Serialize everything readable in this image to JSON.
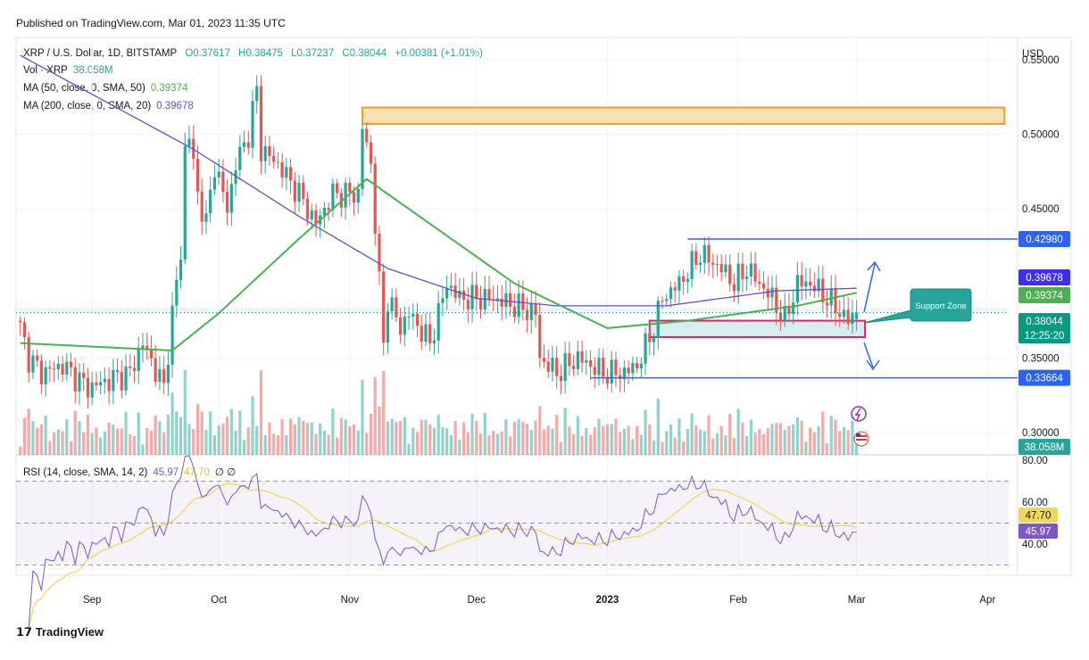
{
  "header": {
    "published": "Published on TradingView.com, Mar 01, 2023 11:35 UTC"
  },
  "legend": {
    "symbol": "XRP / U.S. Dollar, 1D, BITSTAMP",
    "open": "O0.37617",
    "high": "H0.38475",
    "low": "L0.37237",
    "close": "C0.38044",
    "change": "+0.00381 (+1.01%)",
    "vol_label": "Vol · XRP",
    "vol_value": "38.058M",
    "ma50_label": "MA (50, close, 0, SMA, 50)",
    "ma50_value": "0.39374",
    "ma200_label": "MA (200, close, 0, SMA, 20)",
    "ma200_value": "0.39678",
    "rsi_label": "RSI (14, close, SMA, 14, 2)",
    "rsi_value": "45.97",
    "rsi_ma_value": "47.70",
    "rsi_extra": "∅ ∅"
  },
  "annotations": {
    "support_zone": "Support Zone"
  },
  "footer": {
    "brand": "TradingView"
  },
  "colors": {
    "up": "#26a69a",
    "down": "#ef5350",
    "ma50": "#4caf50",
    "ma200": "#5b4fcf",
    "rsi": "#7e57c2",
    "rsi_ma": "#f0d75a",
    "level": "#2962ff",
    "zone_orange": "#f0a020",
    "zone_pink": "#e91e63"
  },
  "chart_data": {
    "type": "candlestick",
    "currency": "USD",
    "y_ticks": [
      "0.55000",
      "0.50000",
      "0.45000",
      "0.35000",
      "0.30000"
    ],
    "ylim": [
      0.285,
      0.565
    ],
    "x_ticks": [
      {
        "date": "2022-09-01",
        "label": "Sep"
      },
      {
        "date": "2022-10-01",
        "label": "Oct"
      },
      {
        "date": "2022-11-01",
        "label": "Nov"
      },
      {
        "date": "2022-12-01",
        "label": "Dec"
      },
      {
        "date": "2023-01-01",
        "label": "2023"
      },
      {
        "date": "2023-02-01",
        "label": "Feb"
      },
      {
        "date": "2023-03-01",
        "label": "Mar"
      },
      {
        "date": "2023-04-01",
        "label": "Apr"
      }
    ],
    "xlim": [
      "2022-08-14",
      "2023-04-06"
    ],
    "close_points": [
      [
        "2022-08-15",
        0.37
      ],
      [
        "2022-08-17",
        0.35
      ],
      [
        "2022-08-20",
        0.34
      ],
      [
        "2022-08-25",
        0.345
      ],
      [
        "2022-08-31",
        0.33
      ],
      [
        "2022-09-05",
        0.335
      ],
      [
        "2022-09-10",
        0.34
      ],
      [
        "2022-09-13",
        0.36
      ],
      [
        "2022-09-18",
        0.33
      ],
      [
        "2022-09-20",
        0.38
      ],
      [
        "2022-09-22",
        0.42
      ],
      [
        "2022-09-23",
        0.49
      ],
      [
        "2022-09-24",
        0.5
      ],
      [
        "2022-09-26",
        0.46
      ],
      [
        "2022-09-28",
        0.44
      ],
      [
        "2022-09-30",
        0.48
      ],
      [
        "2022-10-03",
        0.45
      ],
      [
        "2022-10-05",
        0.48
      ],
      [
        "2022-10-08",
        0.5
      ],
      [
        "2022-10-10",
        0.53
      ],
      [
        "2022-10-11",
        0.49
      ],
      [
        "2022-10-15",
        0.48
      ],
      [
        "2022-10-20",
        0.46
      ],
      [
        "2022-10-24",
        0.44
      ],
      [
        "2022-10-28",
        0.46
      ],
      [
        "2022-10-31",
        0.46
      ],
      [
        "2022-11-03",
        0.46
      ],
      [
        "2022-11-04",
        0.505
      ],
      [
        "2022-11-06",
        0.48
      ],
      [
        "2022-11-08",
        0.4
      ],
      [
        "2022-11-09",
        0.36
      ],
      [
        "2022-11-10",
        0.39
      ],
      [
        "2022-11-13",
        0.37
      ],
      [
        "2022-11-15",
        0.38
      ],
      [
        "2022-11-20",
        0.36
      ],
      [
        "2022-11-24",
        0.4
      ],
      [
        "2022-11-27",
        0.39
      ],
      [
        "2022-12-05",
        0.39
      ],
      [
        "2022-12-10",
        0.385
      ],
      [
        "2022-12-15",
        0.38
      ],
      [
        "2022-12-16",
        0.35
      ],
      [
        "2022-12-20",
        0.34
      ],
      [
        "2022-12-25",
        0.35
      ],
      [
        "2022-12-31",
        0.34
      ],
      [
        "2023-01-05",
        0.34
      ],
      [
        "2023-01-08",
        0.345
      ],
      [
        "2023-01-12",
        0.37
      ],
      [
        "2023-01-14",
        0.39
      ],
      [
        "2023-01-18",
        0.4
      ],
      [
        "2023-01-23",
        0.42
      ],
      [
        "2023-01-28",
        0.41
      ],
      [
        "2023-01-31",
        0.4
      ],
      [
        "2023-02-03",
        0.41
      ],
      [
        "2023-02-09",
        0.39
      ],
      [
        "2023-02-12",
        0.375
      ],
      [
        "2023-02-15",
        0.4
      ],
      [
        "2023-02-18",
        0.4
      ],
      [
        "2023-02-22",
        0.39
      ],
      [
        "2023-02-27",
        0.375
      ],
      [
        "2023-03-01",
        0.38044
      ]
    ],
    "ma50_points": [
      [
        "2022-08-15",
        0.36
      ],
      [
        "2022-09-20",
        0.355
      ],
      [
        "2022-10-01",
        0.38
      ],
      [
        "2022-10-20",
        0.43
      ],
      [
        "2022-11-05",
        0.47
      ],
      [
        "2022-11-20",
        0.44
      ],
      [
        "2022-12-10",
        0.4
      ],
      [
        "2023-01-01",
        0.37
      ],
      [
        "2023-01-20",
        0.375
      ],
      [
        "2023-02-15",
        0.385
      ],
      [
        "2023-03-01",
        0.39374
      ]
    ],
    "ma200_points": [
      [
        "2022-08-15",
        0.553
      ],
      [
        "2022-09-25",
        0.49
      ],
      [
        "2022-10-20",
        0.445
      ],
      [
        "2022-11-10",
        0.41
      ],
      [
        "2022-12-01",
        0.39
      ],
      [
        "2022-12-20",
        0.385
      ],
      [
        "2023-01-15",
        0.385
      ],
      [
        "2023-02-10",
        0.395
      ],
      [
        "2023-03-01",
        0.39678
      ]
    ],
    "levels": [
      {
        "price": 0.4298,
        "label": "0.42980",
        "from": "2023-01-20"
      },
      {
        "price": 0.33664,
        "label": "0.33664",
        "from": "2022-12-28"
      }
    ],
    "zones": [
      {
        "from": "2022-11-04",
        "to": "2023-04-05",
        "low": 0.507,
        "high": 0.518,
        "color": "orange"
      },
      {
        "from": "2023-01-11",
        "to": "2023-03-03",
        "low": 0.364,
        "high": 0.375,
        "color": "pink"
      }
    ],
    "price_tags": [
      {
        "label": "0.39678",
        "color": "#3d2ff5"
      },
      {
        "label": "0.39374",
        "color": "#4caf50"
      },
      {
        "label": "0.38044",
        "sub": "12:25:20",
        "color": "#089981"
      },
      {
        "label": "38.058M",
        "color": "#26a69a"
      }
    ],
    "rsi": {
      "ylim": [
        20,
        90
      ],
      "ticks": [
        "80.00",
        "60.00",
        "40.00"
      ],
      "bands": [
        70,
        50,
        30
      ],
      "last": "45.97",
      "last_ma": "47.70"
    }
  }
}
